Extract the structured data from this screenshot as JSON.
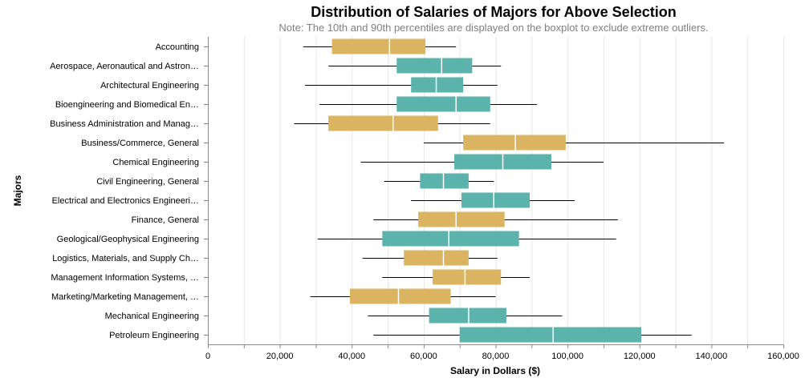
{
  "chart_data": {
    "type": "boxplot",
    "orientation": "horizontal",
    "title": "Distribution of Salaries of Majors for Above Selection",
    "subtitle": "Note: The 10th and 90th percentiles are displayed on the boxplot to exclude extreme outliers.",
    "xlabel": "Salary in Dollars ($)",
    "ylabel": "Majors",
    "xlim": [
      0,
      160000
    ],
    "xticks": [
      0,
      20000,
      40000,
      60000,
      80000,
      100000,
      120000,
      140000,
      160000
    ],
    "xtick_labels": [
      "0",
      "20,000",
      "40,000",
      "60,000",
      "80,000",
      "100,000",
      "120,000",
      "140,000",
      "160,000"
    ],
    "grid": "vertical",
    "colors": {
      "business": "#DBB462",
      "engineering": "#5BB3AB",
      "whisker": "#000000",
      "median": "#ffffff",
      "grid": "#e6e6e6"
    },
    "categories": [
      {
        "label": "Accounting",
        "group": "business",
        "p10": 26500,
        "q1": 34500,
        "median": 50500,
        "q3": 60500,
        "p90": 69000
      },
      {
        "label": "Aerospace, Aeronautical and Astron…",
        "group": "engineering",
        "p10": 33500,
        "q1": 52500,
        "median": 65000,
        "q3": 73500,
        "p90": 81500
      },
      {
        "label": "Architectural Engineering",
        "group": "engineering",
        "p10": 27000,
        "q1": 56500,
        "median": 63500,
        "q3": 71000,
        "p90": 80500
      },
      {
        "label": "Bioengineering and Biomedical En…",
        "group": "engineering",
        "p10": 31000,
        "q1": 52500,
        "median": 69000,
        "q3": 78500,
        "p90": 91500
      },
      {
        "label": "Business Administration and Manag…",
        "group": "business",
        "p10": 24000,
        "q1": 33500,
        "median": 51500,
        "q3": 64000,
        "p90": 78500
      },
      {
        "label": "Business/Commerce, General",
        "group": "business",
        "p10": 60000,
        "q1": 71000,
        "median": 85500,
        "q3": 99500,
        "p90": 143500
      },
      {
        "label": "Chemical Engineering",
        "group": "engineering",
        "p10": 42500,
        "q1": 68500,
        "median": 82000,
        "q3": 95500,
        "p90": 110000
      },
      {
        "label": "Civil Engineering, General",
        "group": "engineering",
        "p10": 49000,
        "q1": 59000,
        "median": 65500,
        "q3": 72500,
        "p90": 79500
      },
      {
        "label": "Electrical and Electronics Engineeri…",
        "group": "engineering",
        "p10": 56500,
        "q1": 70500,
        "median": 79500,
        "q3": 89500,
        "p90": 102000
      },
      {
        "label": "Finance, General",
        "group": "business",
        "p10": 46000,
        "q1": 58500,
        "median": 69000,
        "q3": 82500,
        "p90": 114000
      },
      {
        "label": "Geological/Geophysical Engineering",
        "group": "engineering",
        "p10": 30500,
        "q1": 48500,
        "median": 67000,
        "q3": 86500,
        "p90": 113500
      },
      {
        "label": "Logistics, Materials, and Supply Ch…",
        "group": "business",
        "p10": 43000,
        "q1": 54500,
        "median": 65500,
        "q3": 72500,
        "p90": 80500
      },
      {
        "label": "Management Information Systems, …",
        "group": "business",
        "p10": 48500,
        "q1": 62500,
        "median": 71500,
        "q3": 81500,
        "p90": 89500
      },
      {
        "label": "Marketing/Marketing Management, …",
        "group": "business",
        "p10": 28500,
        "q1": 39500,
        "median": 53000,
        "q3": 67500,
        "p90": 80000
      },
      {
        "label": "Mechanical Engineering",
        "group": "engineering",
        "p10": 44500,
        "q1": 61500,
        "median": 72500,
        "q3": 83000,
        "p90": 98500
      },
      {
        "label": "Petroleum Engineering",
        "group": "engineering",
        "p10": 46000,
        "q1": 70000,
        "median": 96000,
        "q3": 120500,
        "p90": 134500
      }
    ]
  }
}
